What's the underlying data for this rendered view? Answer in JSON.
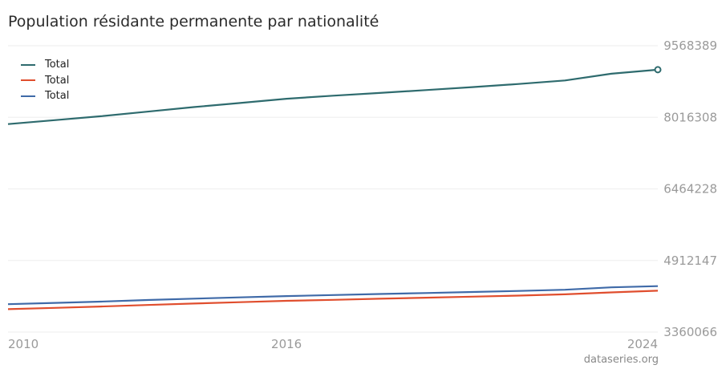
{
  "page": {
    "title": "Population résidante permanente par nationalité",
    "credit": "dataseries.org"
  },
  "chart_data": {
    "type": "line",
    "title": "Population résidante permanente par nationalité",
    "xlabel": "",
    "ylabel": "",
    "x": [
      2010,
      2011,
      2012,
      2013,
      2014,
      2015,
      2016,
      2017,
      2018,
      2019,
      2020,
      2021,
      2022,
      2023,
      2024
    ],
    "xlim": [
      2010,
      2024
    ],
    "ylim": [
      3360066,
      9568389
    ],
    "x_ticks": [
      "2010",
      "2016",
      "2024"
    ],
    "x_tick_values": [
      2010,
      2016,
      2024
    ],
    "y_ticks": [
      "9568389",
      "8016308",
      "6464228",
      "4912147",
      "3360066"
    ],
    "y_tick_values": [
      9568389,
      8016308,
      6464228,
      4912147,
      3360066
    ],
    "grid": true,
    "legend": "top-left",
    "series": [
      {
        "name": "Total",
        "color": "#2e6b6e",
        "values": [
          7870134,
          7954662,
          8039060,
          8139631,
          8237666,
          8327126,
          8419550,
          8484130,
          8544527,
          8606033,
          8670300,
          8738791,
          8815385,
          8962258,
          9048900
        ],
        "end_marker": true
      },
      {
        "name": "Total",
        "color": "#e04e2e",
        "values": [
          3857000,
          3885000,
          3915000,
          3948000,
          3980000,
          4008000,
          4038000,
          4060000,
          4083000,
          4106000,
          4128000,
          4152000,
          4180000,
          4221000,
          4258000
        ]
      },
      {
        "name": "Total",
        "color": "#3f6aa8",
        "values": [
          3966000,
          3993000,
          4021000,
          4056000,
          4086000,
          4113000,
          4141000,
          4163000,
          4186000,
          4207000,
          4230000,
          4252000,
          4278000,
          4330000,
          4357000
        ]
      }
    ]
  }
}
